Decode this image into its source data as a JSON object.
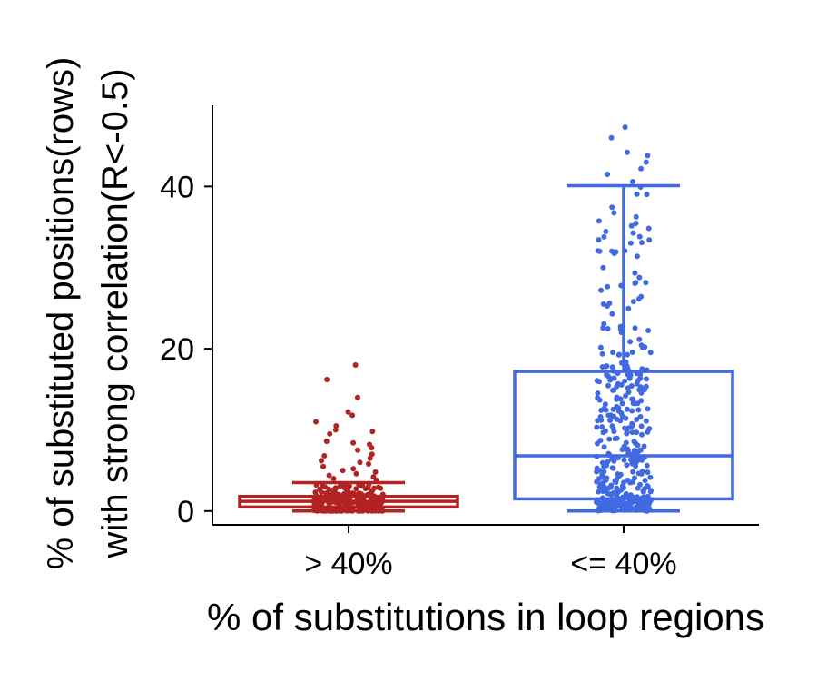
{
  "chart_data": {
    "type": "box",
    "xlabel": "% of substitutions in loop regions",
    "ylabel_line1": "% of substituted positions(rows)",
    "ylabel_line2": "with strong correlation(R<-0.5)",
    "ylim": [
      -1.7,
      50
    ],
    "yticks": [
      0,
      20,
      40
    ],
    "categories": [
      "> 40%",
      "<= 40%"
    ],
    "series": [
      {
        "category": "> 40%",
        "color": "#B22222",
        "whisker_low": 0,
        "q1": 0.5,
        "median": 1.2,
        "q3": 1.8,
        "whisker_high": 3.5,
        "outliers": [
          18.0,
          16.2,
          14.0,
          12.2,
          11.8,
          11.0,
          10.5,
          10.0,
          9.8,
          9.5,
          8.6,
          8.4,
          8.2,
          7.8,
          7.5,
          7.0,
          6.8,
          6.5,
          6.2,
          6.0,
          5.8,
          5.5,
          5.2,
          5.0,
          4.8,
          4.6,
          4.4,
          4.2,
          4.0,
          3.8
        ]
      },
      {
        "category": "<= 40%",
        "color": "#4169E1",
        "whisker_low": 0,
        "q1": 1.5,
        "median": 6.8,
        "q3": 17.2,
        "whisker_high": 40.1,
        "outliers": [
          47.3,
          46.0,
          44.2,
          43.8,
          43.0,
          42.2,
          41.5,
          40.6
        ]
      }
    ]
  }
}
